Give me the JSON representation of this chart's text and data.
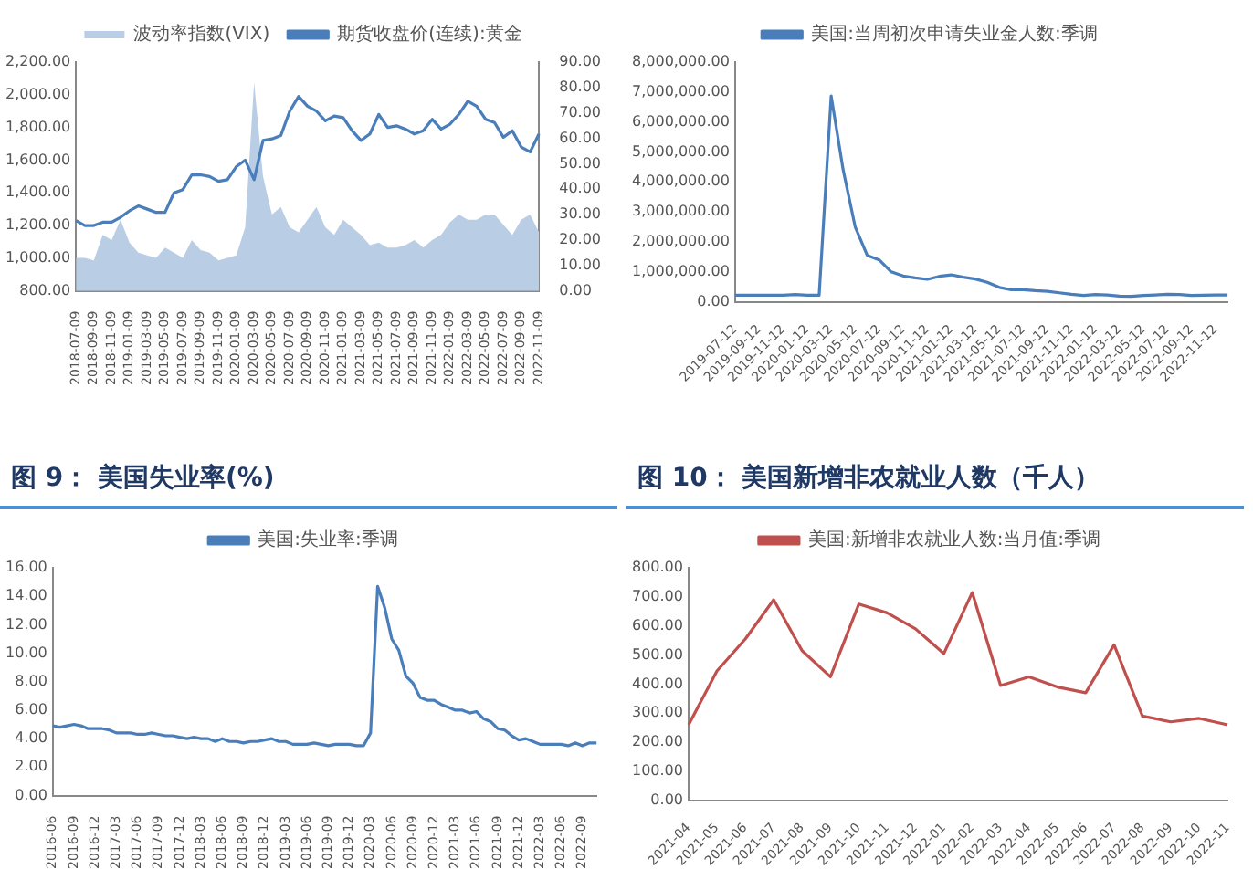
{
  "chart_data": [
    {
      "type": "line",
      "legend": "top",
      "categories": [
        "2018-07-09",
        null,
        "2018-09-09",
        null,
        "2018-11-09",
        null,
        "2019-01-09",
        null,
        "2019-03-09",
        null,
        "2019-05-09",
        null,
        "2019-07-09",
        null,
        "2019-09-09",
        null,
        "2019-11-09",
        null,
        "2020-01-09",
        null,
        "2020-03-09",
        null,
        "2020-05-09",
        null,
        "2020-07-09",
        null,
        "2020-09-09",
        null,
        "2020-11-09",
        null,
        "2021-01-09",
        null,
        "2021-03-09",
        null,
        "2021-05-09",
        null,
        "2021-07-09",
        null,
        "2021-09-09",
        null,
        "2021-11-09",
        null,
        "2022-01-09",
        null,
        "2022-03-09",
        null,
        "2022-05-09",
        null,
        "2022-07-09",
        null,
        "2022-09-09",
        null,
        "2022-11-09"
      ],
      "series": [
        {
          "name": "波动率指数(VIX)",
          "type": "area",
          "axis": "y2",
          "color": "#b9cde5",
          "values": [
            13,
            13,
            12,
            22,
            20,
            28,
            19,
            15,
            14,
            13,
            17,
            15,
            13,
            20,
            16,
            15,
            12,
            13,
            14,
            25,
            82,
            45,
            30,
            33,
            25,
            23,
            28,
            33,
            25,
            22,
            28,
            25,
            22,
            18,
            19,
            17,
            17,
            18,
            20,
            17,
            20,
            22,
            27,
            30,
            28,
            28,
            30,
            30,
            26,
            22,
            28,
            30,
            23
          ]
        },
        {
          "name": "期货收盘价(连续):黄金",
          "type": "line",
          "color": "#4a7ebb",
          "values": [
            1230,
            1200,
            1200,
            1220,
            1220,
            1250,
            1290,
            1320,
            1300,
            1280,
            1280,
            1400,
            1420,
            1510,
            1510,
            1500,
            1470,
            1480,
            1560,
            1600,
            1480,
            1720,
            1730,
            1750,
            1900,
            1990,
            1930,
            1900,
            1840,
            1870,
            1860,
            1780,
            1720,
            1760,
            1880,
            1800,
            1810,
            1790,
            1760,
            1780,
            1850,
            1790,
            1820,
            1880,
            1960,
            1930,
            1850,
            1830,
            1740,
            1780,
            1680,
            1650,
            1760
          ]
        }
      ],
      "ylim": [
        800,
        2200
      ],
      "yticks": [
        {
          "value": 800,
          "label": "800.00"
        },
        {
          "value": 1000,
          "label": "1,000.00"
        },
        {
          "value": 1200,
          "label": "1,200.00"
        },
        {
          "value": 1400,
          "label": "1,400.00"
        },
        {
          "value": 1600,
          "label": "1,600.00"
        },
        {
          "value": 1800,
          "label": "1,800.00"
        },
        {
          "value": 2000,
          "label": "2,000.00"
        },
        {
          "value": 2200,
          "label": "2,200.00"
        }
      ],
      "y2lim": [
        0,
        90
      ],
      "y2ticks": [
        {
          "value": 0,
          "label": "0.00"
        },
        {
          "value": 10,
          "label": "10.00"
        },
        {
          "value": 20,
          "label": "20.00"
        },
        {
          "value": 30,
          "label": "30.00"
        },
        {
          "value": 40,
          "label": "40.00"
        },
        {
          "value": 50,
          "label": "50.00"
        },
        {
          "value": 60,
          "label": "60.00"
        },
        {
          "value": 70,
          "label": "70.00"
        },
        {
          "value": 80,
          "label": "80.00"
        },
        {
          "value": 90,
          "label": "90.00"
        }
      ]
    },
    {
      "type": "line",
      "legend": "top",
      "categories": [
        "2019-07-12",
        null,
        "2019-09-12",
        null,
        "2019-11-12",
        null,
        "2020-01-12",
        null,
        "2020-03-12",
        null,
        "2020-05-12",
        null,
        "2020-07-12",
        null,
        "2020-09-12",
        null,
        "2020-11-12",
        null,
        "2021-01-12",
        null,
        "2021-03-12",
        null,
        "2021-05-12",
        null,
        "2021-07-12",
        null,
        "2021-09-12",
        null,
        "2021-11-12",
        null,
        "2022-01-12",
        null,
        "2022-03-12",
        null,
        "2022-05-12",
        null,
        "2022-07-12",
        null,
        "2022-09-12",
        null,
        "2022-11-12",
        null
      ],
      "series": [
        {
          "name": "美国:当周初次申请失业金人数:季调",
          "color": "#4a7ebb",
          "values": [
            220000,
            220000,
            220000,
            220000,
            220000,
            240000,
            220000,
            220000,
            6870000,
            4400000,
            2500000,
            1550000,
            1400000,
            1000000,
            860000,
            800000,
            750000,
            850000,
            900000,
            820000,
            760000,
            650000,
            480000,
            400000,
            400000,
            370000,
            350000,
            300000,
            250000,
            210000,
            240000,
            230000,
            190000,
            180000,
            210000,
            230000,
            250000,
            240000,
            210000,
            220000,
            230000,
            230000
          ]
        }
      ],
      "ylim": [
        0,
        8000000
      ],
      "yticks": [
        {
          "value": 0,
          "label": "0.00"
        },
        {
          "value": 1000000,
          "label": "1,000,000.00"
        },
        {
          "value": 2000000,
          "label": "2,000,000.00"
        },
        {
          "value": 3000000,
          "label": "3,000,000.00"
        },
        {
          "value": 4000000,
          "label": "4,000,000.00"
        },
        {
          "value": 5000000,
          "label": "5,000,000.00"
        },
        {
          "value": 6000000,
          "label": "6,000,000.00"
        },
        {
          "value": 7000000,
          "label": "7,000,000.00"
        },
        {
          "value": 8000000,
          "label": "8,000,000.00"
        }
      ]
    },
    {
      "type": "line",
      "title": "图 9： 美国失业率(%)",
      "legend": "top",
      "categories": [
        "2016-06",
        null,
        null,
        "2016-09",
        null,
        null,
        "2016-12",
        null,
        null,
        "2017-03",
        null,
        null,
        "2017-06",
        null,
        null,
        "2017-09",
        null,
        null,
        "2017-12",
        null,
        null,
        "2018-03",
        null,
        null,
        "2018-06",
        null,
        null,
        "2018-09",
        null,
        null,
        "2018-12",
        null,
        null,
        "2019-03",
        null,
        null,
        "2019-06",
        null,
        null,
        "2019-09",
        null,
        null,
        "2019-12",
        null,
        null,
        "2020-03",
        null,
        null,
        "2020-06",
        null,
        null,
        "2020-09",
        null,
        null,
        "2020-12",
        null,
        null,
        "2021-03",
        null,
        null,
        "2021-06",
        null,
        null,
        "2021-09",
        null,
        null,
        "2021-12",
        null,
        null,
        "2022-03",
        null,
        null,
        "2022-06",
        null,
        null,
        "2022-09",
        null,
        null
      ],
      "series": [
        {
          "name": "美国:失业率:季调",
          "color": "#4a7ebb",
          "values": [
            4.9,
            4.8,
            4.9,
            5.0,
            4.9,
            4.7,
            4.7,
            4.7,
            4.6,
            4.4,
            4.4,
            4.4,
            4.3,
            4.3,
            4.4,
            4.3,
            4.2,
            4.2,
            4.1,
            4.0,
            4.1,
            4.0,
            4.0,
            3.8,
            4.0,
            3.8,
            3.8,
            3.7,
            3.8,
            3.8,
            3.9,
            4.0,
            3.8,
            3.8,
            3.6,
            3.6,
            3.6,
            3.7,
            3.6,
            3.5,
            3.6,
            3.6,
            3.6,
            3.5,
            3.5,
            4.4,
            14.7,
            13.2,
            11.0,
            10.2,
            8.4,
            7.9,
            6.9,
            6.7,
            6.7,
            6.4,
            6.2,
            6.0,
            6.0,
            5.8,
            5.9,
            5.4,
            5.2,
            4.7,
            4.6,
            4.2,
            3.9,
            4.0,
            3.8,
            3.6,
            3.6,
            3.6,
            3.6,
            3.5,
            3.7,
            3.5,
            3.7,
            3.7
          ]
        }
      ],
      "ylim": [
        0,
        16
      ],
      "yticks": [
        {
          "value": 0,
          "label": "0.00"
        },
        {
          "value": 2,
          "label": "2.00"
        },
        {
          "value": 4,
          "label": "4.00"
        },
        {
          "value": 6,
          "label": "6.00"
        },
        {
          "value": 8,
          "label": "8.00"
        },
        {
          "value": 10,
          "label": "10.00"
        },
        {
          "value": 12,
          "label": "12.00"
        },
        {
          "value": 14,
          "label": "14.00"
        },
        {
          "value": 16,
          "label": "16.00"
        }
      ]
    },
    {
      "type": "line",
      "title": "图 10： 美国新增非农就业人数（千人）",
      "legend": "top",
      "categories": [
        "2021-04",
        "2021-05",
        "2021-06",
        "2021-07",
        "2021-08",
        "2021-09",
        "2021-10",
        "2021-11",
        "2021-12",
        "2022-01",
        "2022-02",
        "2022-03",
        "2022-04",
        "2022-05",
        "2022-06",
        "2022-07",
        "2022-08",
        "2022-09",
        "2022-10",
        "2022-11"
      ],
      "series": [
        {
          "name": "美国:新增非农就业人数:当月值:季调",
          "color": "#c0504d",
          "values": [
            260,
            445,
            555,
            690,
            515,
            425,
            675,
            645,
            590,
            505,
            715,
            395,
            425,
            390,
            370,
            535,
            290,
            270,
            282,
            260
          ]
        }
      ],
      "ylim": [
        0,
        800
      ],
      "yticks": [
        {
          "value": 0,
          "label": "0.00"
        },
        {
          "value": 100,
          "label": "100.00"
        },
        {
          "value": 200,
          "label": "200.00"
        },
        {
          "value": 300,
          "label": "300.00"
        },
        {
          "value": 400,
          "label": "400.00"
        },
        {
          "value": 500,
          "label": "500.00"
        },
        {
          "value": 600,
          "label": "600.00"
        },
        {
          "value": 700,
          "label": "700.00"
        },
        {
          "value": 800,
          "label": "800.00"
        }
      ]
    }
  ]
}
